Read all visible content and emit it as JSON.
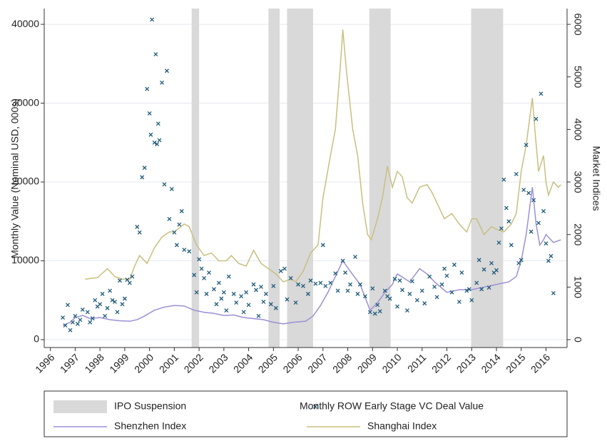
{
  "chart_data": {
    "type": "combo",
    "ylabel": "Monthly Value (Nominal USD, 000s)",
    "y2label": "Market Indices",
    "xlim": [
      1995.75,
      2016.85
    ],
    "xticks": [
      1996,
      1997,
      1998,
      1999,
      2000,
      2001,
      2002,
      2003,
      2004,
      2005,
      2006,
      2007,
      2008,
      2009,
      2010,
      2011,
      2012,
      2013,
      2014,
      2015,
      2016
    ],
    "ylim": [
      -1000,
      42000
    ],
    "yticks": [
      0,
      10000,
      20000,
      30000,
      40000
    ],
    "y2lim": [
      -150,
      6300
    ],
    "y2ticks": [
      0,
      1000,
      2000,
      3000,
      4000,
      5000,
      6000
    ],
    "grid": true,
    "legend": "bottom",
    "series": [
      {
        "name": "IPO Suspension",
        "type": "span",
        "color": "#d9d9d9",
        "ranges": [
          [
            2001.7,
            2002.0
          ],
          [
            2004.8,
            2005.25
          ],
          [
            2005.55,
            2006.6
          ],
          [
            2008.87,
            2009.73
          ],
          [
            2012.98,
            2014.27
          ]
        ]
      },
      {
        "name": "Monthly ROW Early Stage VC Deal Value",
        "type": "scatter",
        "color": "#1f5b7a",
        "x": [
          1996.5,
          1996.6,
          1996.7,
          1996.8,
          1996.9,
          1997.0,
          1997.1,
          1997.2,
          1997.3,
          1997.5,
          1997.6,
          1997.7,
          1997.8,
          1997.9,
          1998.0,
          1998.1,
          1998.2,
          1998.3,
          1998.4,
          1998.5,
          1998.6,
          1998.7,
          1998.8,
          1998.9,
          1999.0,
          1999.1,
          1999.2,
          1999.3,
          1999.5,
          1999.6,
          1999.7,
          1999.8,
          1999.9,
          2000.0,
          2000.05,
          2000.1,
          2000.2,
          2000.25,
          2000.3,
          2000.35,
          2000.4,
          2000.5,
          2000.6,
          2000.7,
          2000.8,
          2000.9,
          2001.0,
          2001.1,
          2001.2,
          2001.3,
          2001.4,
          2001.6,
          2001.8,
          2001.9,
          2002.0,
          2002.1,
          2002.2,
          2002.3,
          2002.4,
          2002.6,
          2002.7,
          2002.8,
          2002.9,
          2003.0,
          2003.1,
          2003.2,
          2003.4,
          2003.5,
          2003.7,
          2003.8,
          2003.9,
          2004.0,
          2004.2,
          2004.3,
          2004.4,
          2004.5,
          2004.6,
          2004.7,
          2004.9,
          2005.0,
          2005.1,
          2005.3,
          2005.45,
          2005.55,
          2005.7,
          2005.9,
          2006.0,
          2006.2,
          2006.4,
          2006.5,
          2006.7,
          2006.9,
          2007.0,
          2007.1,
          2007.3,
          2007.5,
          2007.6,
          2007.8,
          2007.9,
          2008.0,
          2008.1,
          2008.3,
          2008.4,
          2008.5,
          2008.7,
          2008.9,
          2009.0,
          2009.1,
          2009.2,
          2009.3,
          2009.5,
          2009.6,
          2009.7,
          2009.9,
          2010.0,
          2010.1,
          2010.2,
          2010.4,
          2010.5,
          2010.6,
          2010.8,
          2011.0,
          2011.1,
          2011.3,
          2011.5,
          2011.6,
          2011.8,
          2011.9,
          2012.0,
          2012.2,
          2012.3,
          2012.5,
          2012.6,
          2012.8,
          2012.9,
          2013.0,
          2013.2,
          2013.3,
          2013.4,
          2013.5,
          2013.7,
          2013.8,
          2013.9,
          2014.0,
          2014.1,
          2014.2,
          2014.3,
          2014.4,
          2014.5,
          2014.6,
          2014.8,
          2014.9,
          2015.0,
          2015.1,
          2015.2,
          2015.3,
          2015.4,
          2015.5,
          2015.6,
          2015.7,
          2015.8,
          2015.9,
          2016.0,
          2016.1,
          2016.2,
          2016.3
        ],
        "values": [
          2800,
          1800,
          4400,
          1200,
          2200,
          3000,
          2000,
          2500,
          3800,
          3500,
          2200,
          2700,
          5000,
          4200,
          4500,
          5800,
          3000,
          4000,
          6200,
          5000,
          4800,
          3500,
          7500,
          4500,
          5200,
          7600,
          7200,
          8000,
          14300,
          13600,
          20600,
          21800,
          31800,
          28700,
          26000,
          40600,
          25000,
          36200,
          24800,
          27400,
          25300,
          32600,
          19700,
          34100,
          15300,
          19100,
          13600,
          12000,
          14600,
          16300,
          11400,
          11200,
          8200,
          6000,
          10200,
          9000,
          7800,
          5800,
          8500,
          6400,
          4500,
          7200,
          5200,
          6000,
          3700,
          8000,
          5800,
          4700,
          5500,
          3500,
          6000,
          4400,
          7000,
          6300,
          3000,
          6700,
          4800,
          5800,
          4500,
          6800,
          4000,
          8700,
          9000,
          5100,
          7800,
          4700,
          7000,
          6800,
          5800,
          7500,
          7100,
          7200,
          12000,
          6800,
          7200,
          8400,
          6200,
          10000,
          8500,
          6200,
          7000,
          10500,
          5800,
          7000,
          5500,
          3500,
          6500,
          3300,
          4400,
          3600,
          6200,
          5500,
          5200,
          7700,
          4200,
          7500,
          6300,
          3700,
          5800,
          7400,
          5000,
          6200,
          4600,
          8000,
          6700,
          5400,
          7000,
          9000,
          8100,
          6000,
          9500,
          4800,
          8500,
          6200,
          6400,
          5000,
          7200,
          10100,
          6400,
          8900,
          6600,
          9700,
          8500,
          8800,
          12300,
          14100,
          20300,
          16700,
          15000,
          12000,
          21000,
          9700,
          10100,
          19000,
          24700,
          18600,
          13700,
          17700,
          28000,
          14800,
          31200,
          16300,
          12200,
          10000,
          10600,
          5900
        ]
      },
      {
        "name": "Shenzhen Index",
        "type": "line",
        "axis": "y2",
        "color": "#9b8fd6",
        "x": [
          1996.5,
          1996.8,
          1997.0,
          1997.3,
          1997.6,
          1998.0,
          1998.4,
          1998.8,
          1999.2,
          1999.5,
          1999.8,
          2000.2,
          2000.6,
          2001.0,
          2001.4,
          2001.8,
          2002.2,
          2002.6,
          2003.0,
          2003.4,
          2003.8,
          2004.2,
          2004.6,
          2005.0,
          2005.4,
          2005.8,
          2006.3,
          2006.6,
          2006.9,
          2007.2,
          2007.5,
          2007.8,
          2008.1,
          2008.5,
          2008.9,
          2009.2,
          2009.5,
          2009.8,
          2010.0,
          2010.5,
          2010.9,
          2011.2,
          2011.5,
          2012.0,
          2012.5,
          2013.0,
          2013.5,
          2014.0,
          2014.5,
          2014.8,
          2015.0,
          2015.2,
          2015.45,
          2015.6,
          2015.75,
          2015.9,
          2016.0,
          2016.3,
          2016.6
        ],
        "values": [
          270,
          330,
          420,
          460,
          400,
          420,
          380,
          360,
          350,
          380,
          450,
          560,
          620,
          650,
          640,
          560,
          520,
          500,
          460,
          470,
          420,
          400,
          380,
          330,
          300,
          330,
          350,
          450,
          650,
          900,
          1200,
          1500,
          1300,
          1050,
          560,
          700,
          900,
          1050,
          1250,
          1100,
          1350,
          1250,
          1100,
          900,
          950,
          950,
          1000,
          1050,
          1100,
          1200,
          1500,
          2000,
          2900,
          2200,
          1800,
          1900,
          2000,
          1850,
          1900
        ]
      },
      {
        "name": "Shanghai Index",
        "type": "line",
        "axis": "y2",
        "color": "#c9bf7e",
        "x": [
          1997.4,
          1997.9,
          1998.3,
          1998.6,
          1998.9,
          1999.2,
          1999.4,
          1999.6,
          1999.9,
          2000.2,
          2000.5,
          2000.8,
          2001.0,
          2001.4,
          2001.6,
          2001.9,
          2002.2,
          2002.5,
          2002.8,
          2003.1,
          2003.3,
          2003.6,
          2003.9,
          2004.2,
          2004.5,
          2004.8,
          2005.1,
          2005.4,
          2005.7,
          2005.9,
          2006.2,
          2006.5,
          2006.8,
          2007.0,
          2007.3,
          2007.5,
          2007.7,
          2007.8,
          2007.95,
          2008.2,
          2008.4,
          2008.6,
          2008.8,
          2008.95,
          2009.2,
          2009.4,
          2009.6,
          2009.8,
          2010.0,
          2010.2,
          2010.4,
          2010.6,
          2010.9,
          2011.2,
          2011.4,
          2011.7,
          2011.9,
          2012.2,
          2012.5,
          2012.8,
          2013.0,
          2013.2,
          2013.5,
          2013.8,
          2014.0,
          2014.3,
          2014.6,
          2014.8,
          2015.0,
          2015.2,
          2015.45,
          2015.55,
          2015.7,
          2015.9,
          2016.0,
          2016.1,
          2016.3,
          2016.5,
          2016.6
        ],
        "values": [
          1150,
          1180,
          1350,
          1200,
          1150,
          1150,
          1400,
          1600,
          1450,
          1750,
          1950,
          2050,
          2050,
          2200,
          2150,
          1800,
          1600,
          1650,
          1500,
          1500,
          1600,
          1450,
          1400,
          1700,
          1450,
          1350,
          1250,
          1100,
          1150,
          1100,
          1300,
          1650,
          1800,
          2700,
          3500,
          4000,
          5200,
          5900,
          5100,
          4000,
          3500,
          2600,
          2000,
          1900,
          2300,
          2700,
          3300,
          2900,
          3200,
          3100,
          2700,
          2600,
          2900,
          2950,
          2800,
          2500,
          2300,
          2400,
          2200,
          2050,
          2300,
          2300,
          2000,
          2150,
          2100,
          2050,
          2200,
          2400,
          3200,
          3700,
          4600,
          4000,
          3200,
          3500,
          3000,
          2750,
          3000,
          2900,
          2950
        ]
      }
    ]
  }
}
